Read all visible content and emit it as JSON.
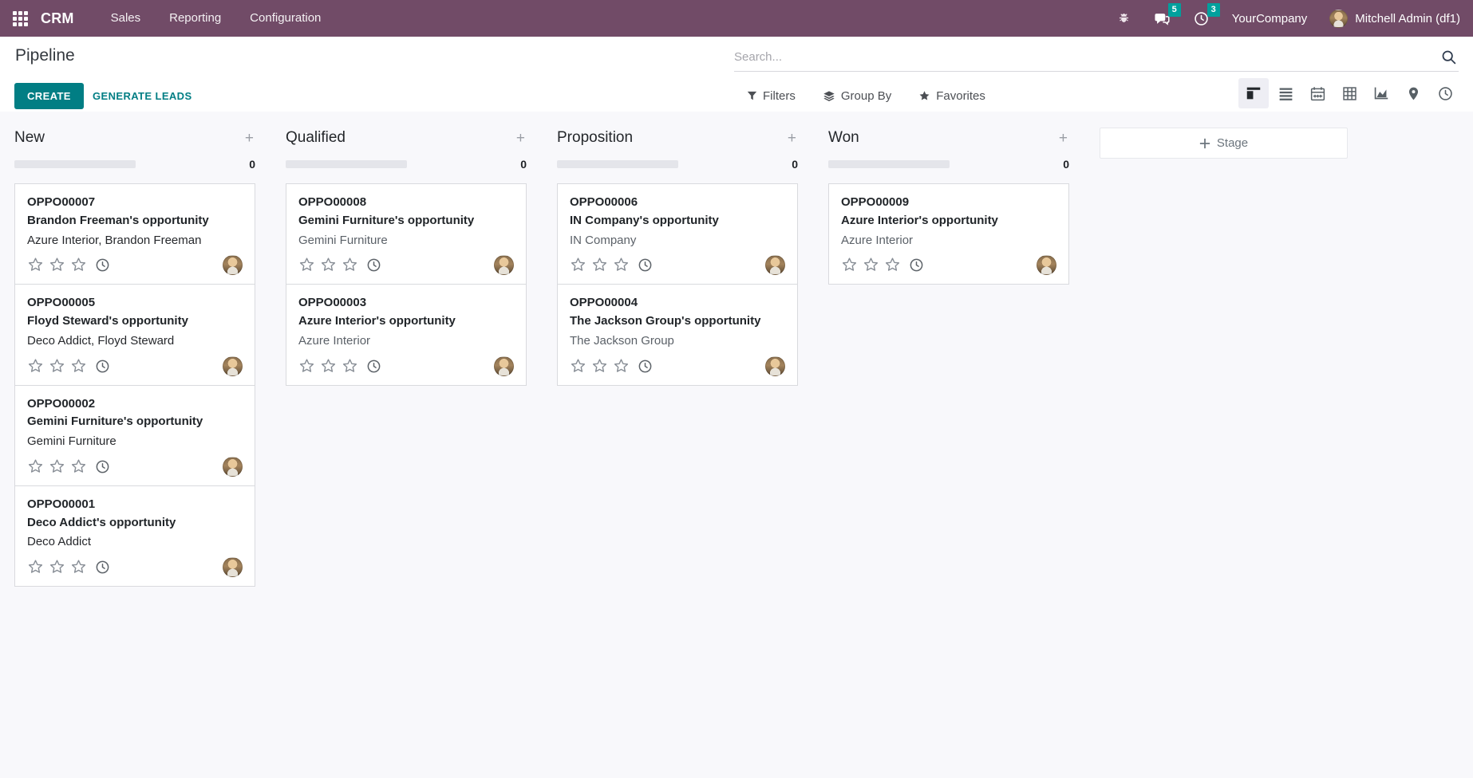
{
  "colors": {
    "brand": "#714B67",
    "primary": "#017E84",
    "badge": "#00A09D"
  },
  "topbar": {
    "app_name": "CRM",
    "menus": [
      {
        "label": "Sales"
      },
      {
        "label": "Reporting"
      },
      {
        "label": "Configuration"
      }
    ],
    "message_badge": "5",
    "activity_badge": "3",
    "company": "YourCompany",
    "user": "Mitchell Admin (df1)"
  },
  "control_panel": {
    "title": "Pipeline",
    "create_label": "CREATE",
    "generate_leads_label": "GENERATE LEADS",
    "search_placeholder": "Search...",
    "filters_label": "Filters",
    "group_by_label": "Group By",
    "favorites_label": "Favorites"
  },
  "view_switcher": {
    "active": "kanban",
    "views": [
      "kanban",
      "list",
      "calendar",
      "pivot",
      "graph",
      "map",
      "activity"
    ]
  },
  "kanban": {
    "add_stage_label": "Stage",
    "columns": [
      {
        "name": "New",
        "count": "0",
        "cards": [
          {
            "ref": "OPPO00007",
            "title": "Brandon Freeman's opportunity",
            "partner": "Azure Interior, Brandon Freeman",
            "partner_style": "dark"
          },
          {
            "ref": "OPPO00005",
            "title": "Floyd Steward's opportunity",
            "partner": "Deco Addict, Floyd Steward",
            "partner_style": "dark"
          },
          {
            "ref": "OPPO00002",
            "title": "Gemini Furniture's opportunity",
            "partner": "Gemini Furniture",
            "partner_style": "dark"
          },
          {
            "ref": "OPPO00001",
            "title": "Deco Addict's opportunity",
            "partner": "Deco Addict",
            "partner_style": "dark"
          }
        ]
      },
      {
        "name": "Qualified",
        "count": "0",
        "cards": [
          {
            "ref": "OPPO00008",
            "title": "Gemini Furniture's opportunity",
            "partner": "Gemini Furniture",
            "partner_style": "muted"
          },
          {
            "ref": "OPPO00003",
            "title": "Azure Interior's opportunity",
            "partner": "Azure Interior",
            "partner_style": "muted"
          }
        ]
      },
      {
        "name": "Proposition",
        "count": "0",
        "cards": [
          {
            "ref": "OPPO00006",
            "title": "IN Company's opportunity",
            "partner": "IN Company",
            "partner_style": "muted"
          },
          {
            "ref": "OPPO00004",
            "title": "The Jackson Group's opportunity",
            "partner": "The Jackson Group",
            "partner_style": "muted"
          }
        ]
      },
      {
        "name": "Won",
        "count": "0",
        "cards": [
          {
            "ref": "OPPO00009",
            "title": "Azure Interior's opportunity",
            "partner": "Azure Interior",
            "partner_style": "muted"
          }
        ]
      }
    ]
  }
}
